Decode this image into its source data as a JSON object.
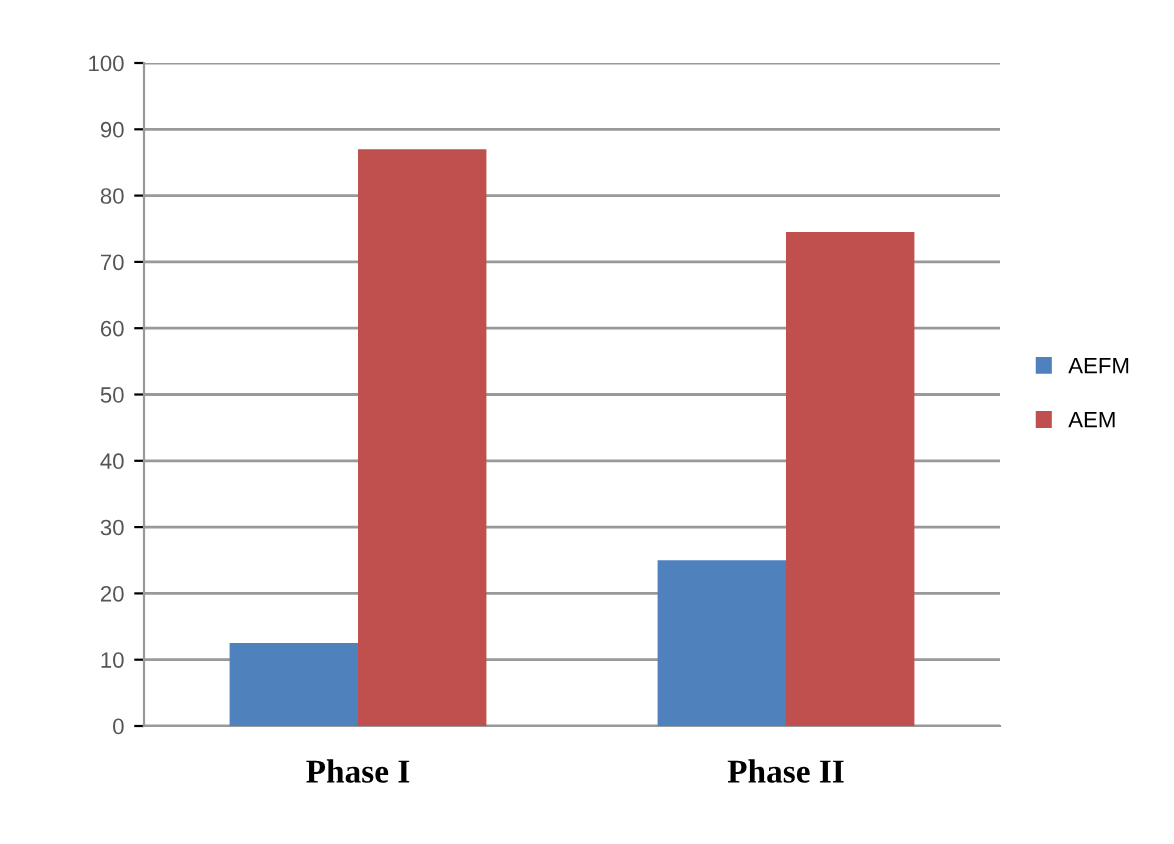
{
  "chart_data": {
    "type": "bar",
    "categories": [
      "Phase I",
      "Phase II"
    ],
    "series": [
      {
        "name": "AEFM",
        "color": "#4f81bd",
        "values": [
          12.5,
          25
        ]
      },
      {
        "name": "AEM",
        "color": "#c0504d",
        "values": [
          87,
          74.5
        ]
      }
    ],
    "ylim": [
      0,
      100
    ],
    "yticks": [
      0,
      10,
      20,
      30,
      40,
      50,
      60,
      70,
      80,
      90,
      100
    ],
    "grid": "y",
    "legend": "right"
  }
}
